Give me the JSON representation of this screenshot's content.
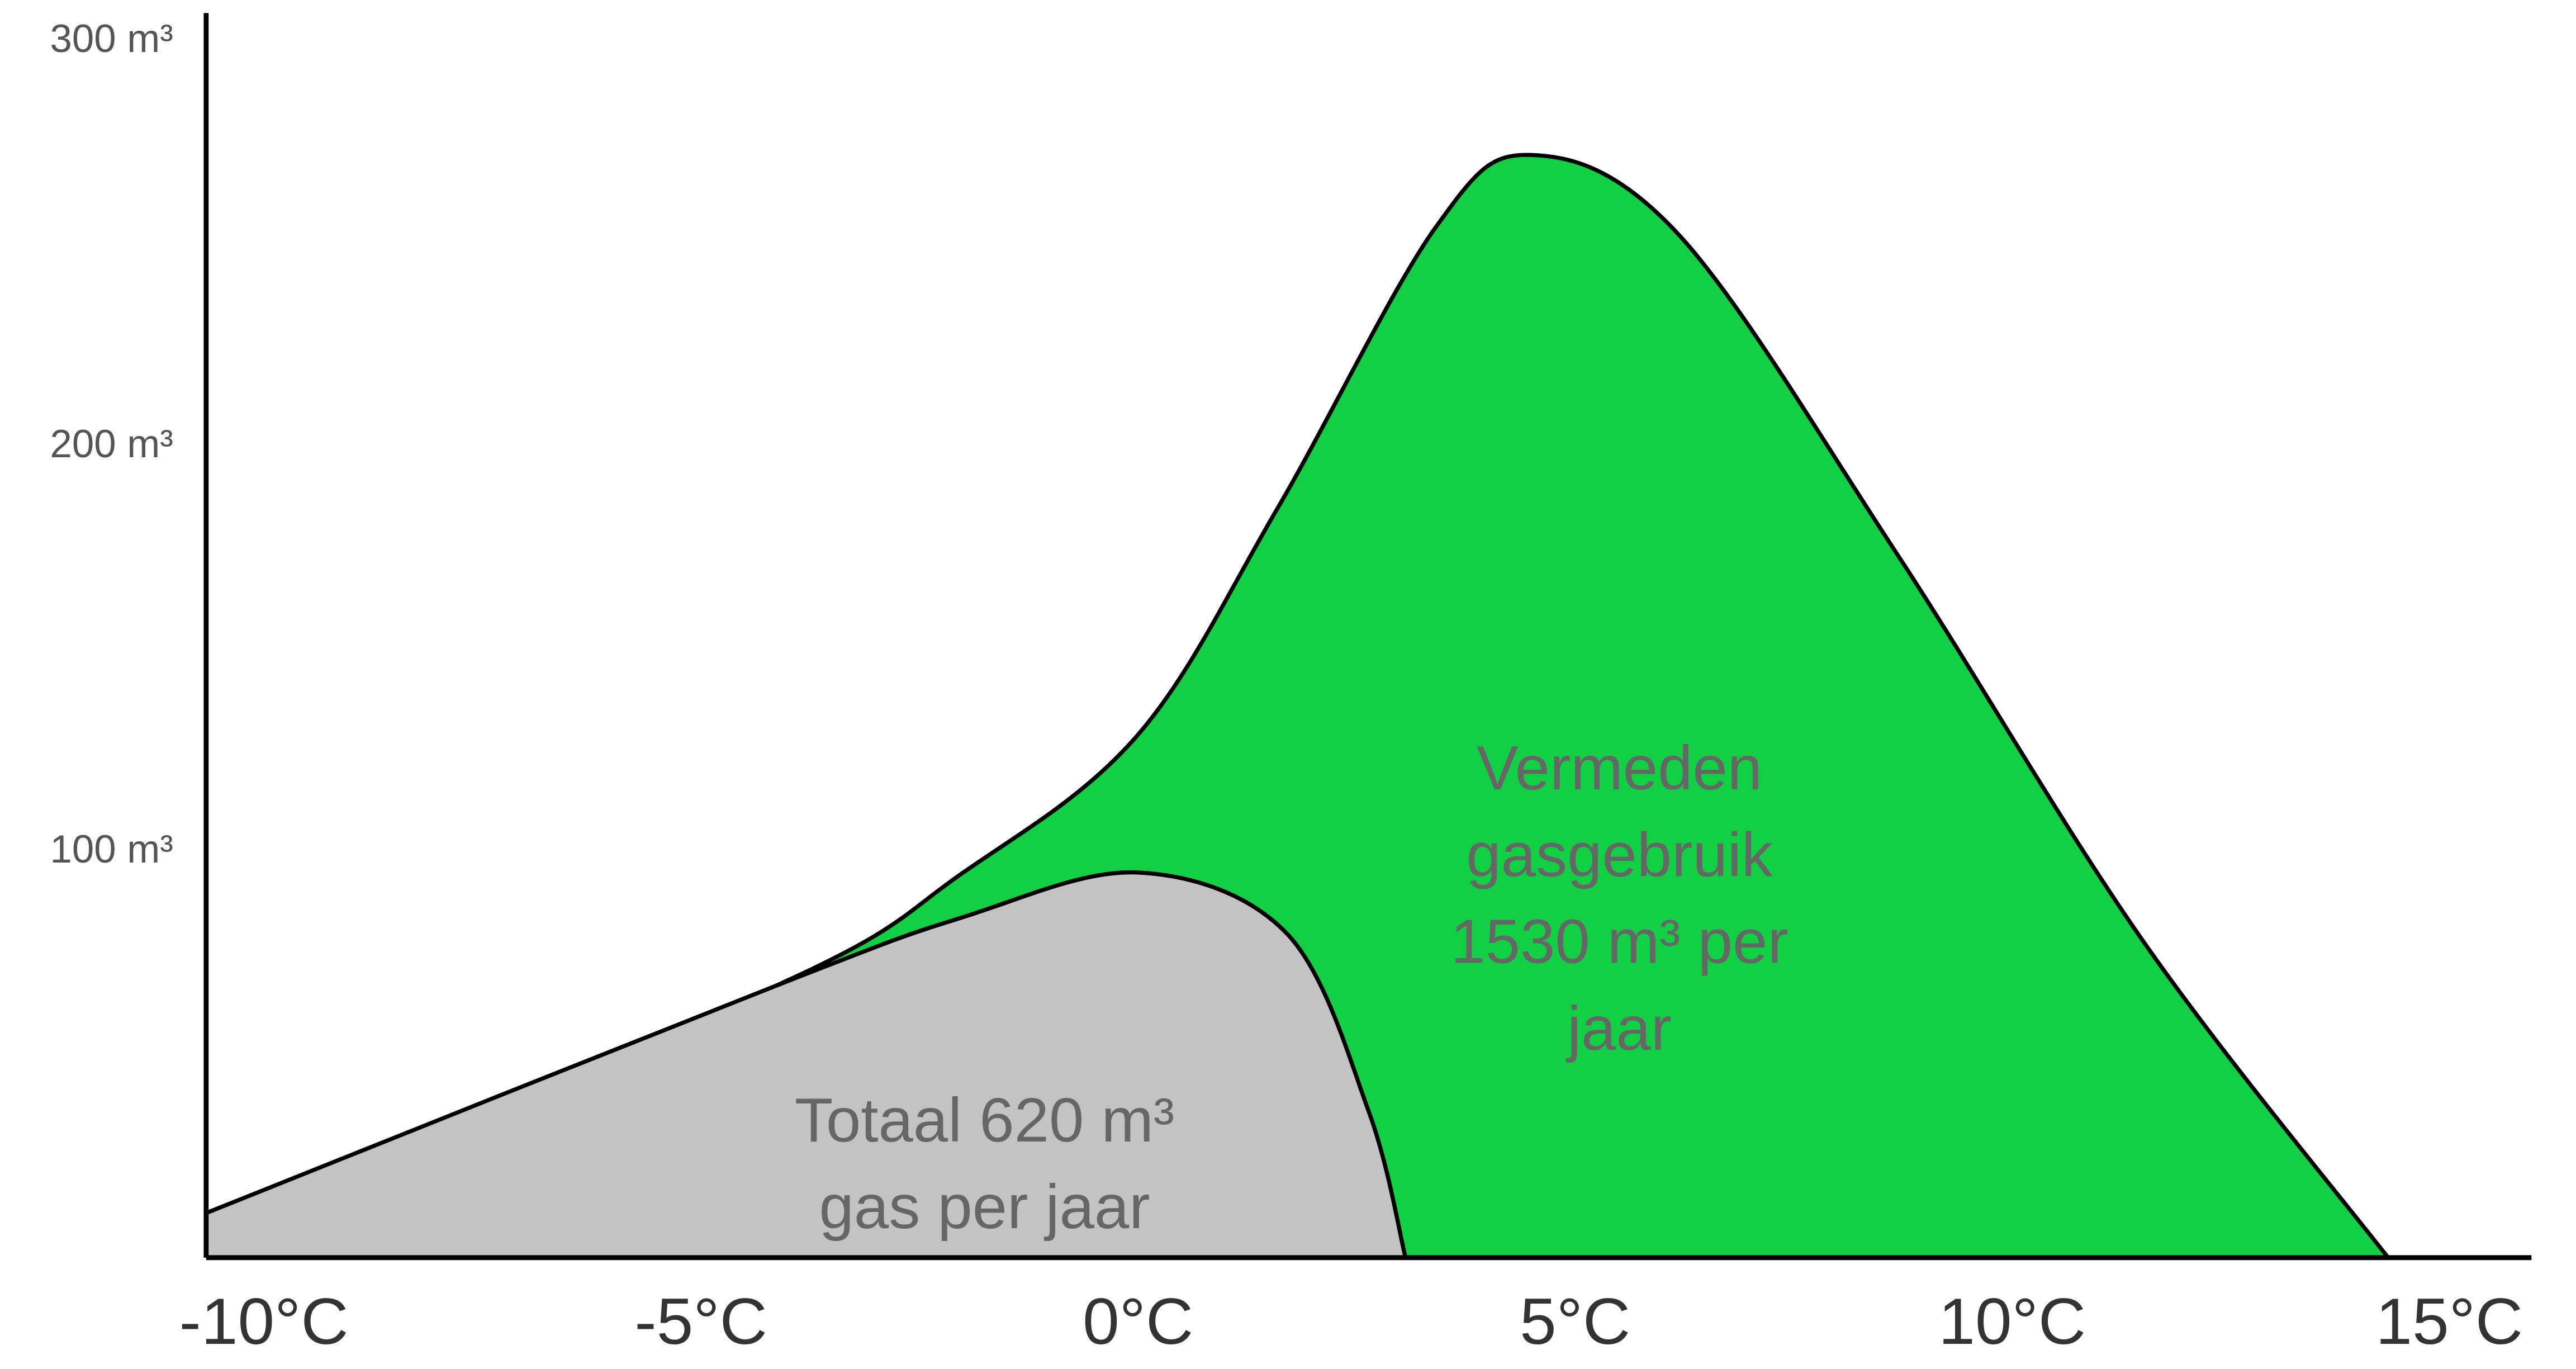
{
  "chart_data": {
    "type": "area",
    "xlim": [
      -10.66,
      15.94
    ],
    "ylim": [
      0,
      307
    ],
    "xticks": [
      {
        "value": -10,
        "label": "-10°C"
      },
      {
        "value": -5,
        "label": "-5°C"
      },
      {
        "value": 0,
        "label": "0°C"
      },
      {
        "value": 5,
        "label": "5°C"
      },
      {
        "value": 10,
        "label": "10°C"
      },
      {
        "value": 15,
        "label": "15°C"
      }
    ],
    "yticks": [
      {
        "value": 100,
        "label": "100 m³"
      },
      {
        "value": 200,
        "label": "200 m³"
      },
      {
        "value": 300,
        "label": "300 m³"
      }
    ],
    "grid": false,
    "series": [
      {
        "color": "#11d044",
        "x": [
          -10.66,
          -4.15,
          -2,
          0,
          1.6,
          3.4,
          4.5,
          6.2,
          8.7,
          11.5,
          14.3
        ],
        "values": [
          11,
          67,
          95,
          129,
          185,
          254,
          272,
          252,
          173,
          78,
          0
        ]
      },
      {
        "color": "#c3c3c3",
        "x": [
          -10.66,
          -4.15,
          -2,
          0,
          1.7,
          2.64,
          3.06
        ],
        "values": [
          11,
          67,
          84,
          95,
          80,
          36,
          0
        ]
      }
    ],
    "annotations": [
      {
        "lines": [
          "Vermeden",
          "gasgebruik",
          "1530 m³ per",
          "jaar"
        ]
      },
      {
        "lines": [
          "Totaal 620 m³",
          "gas per jaar"
        ]
      }
    ]
  }
}
